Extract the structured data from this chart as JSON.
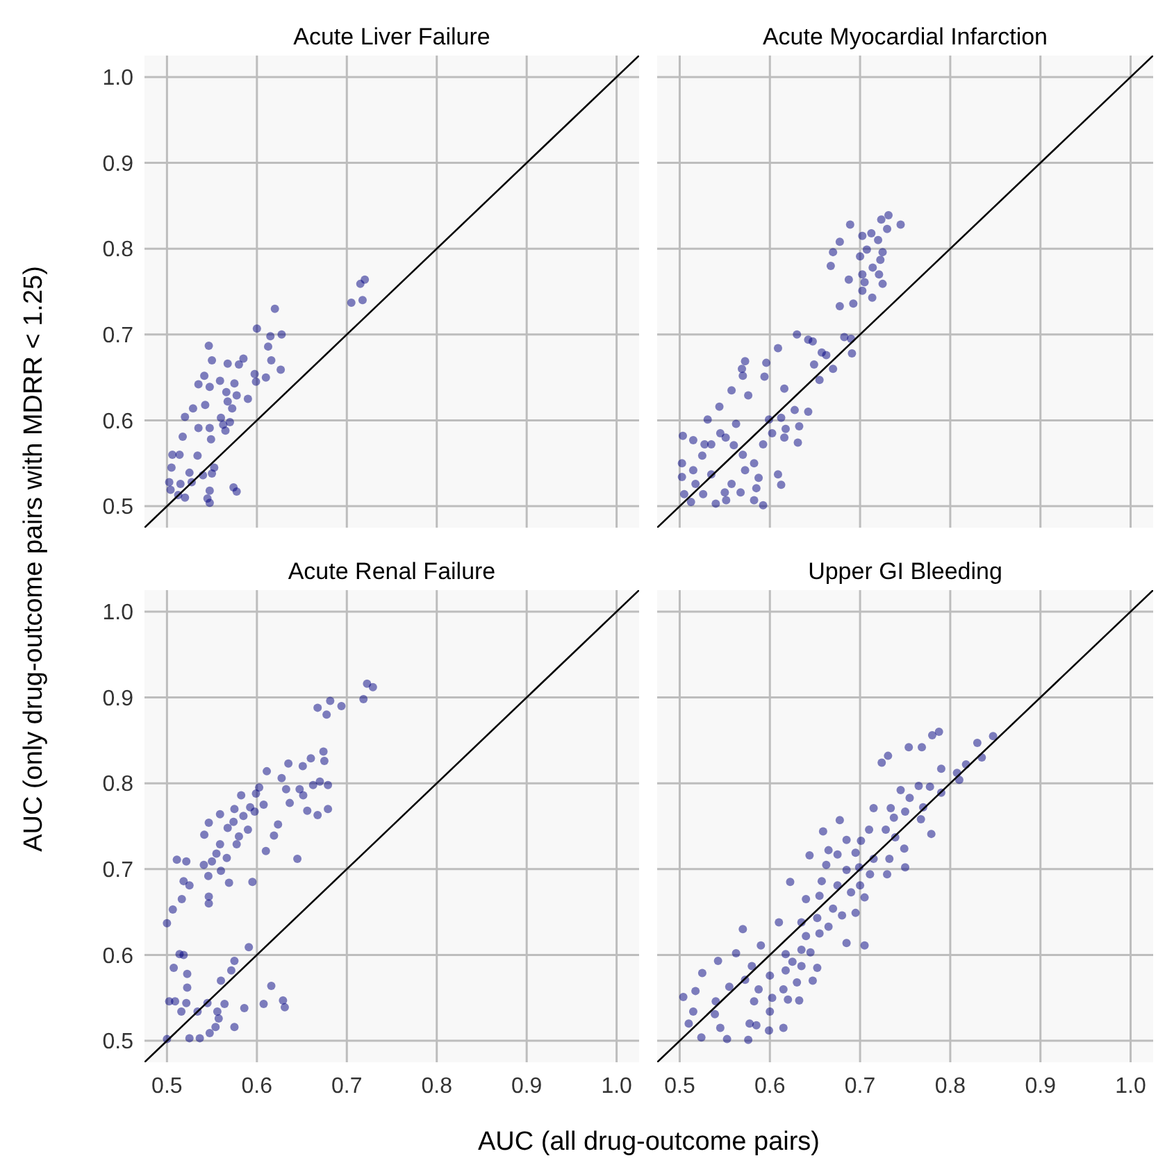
{
  "chart_data": [
    {
      "type": "scatter",
      "title": "Acute Liver Failure",
      "ylabel": "AUC (only drug-outcome pairs with MDRR < 1.25)",
      "xlim": [
        0.475,
        1.025
      ],
      "ylim": [
        0.475,
        1.025
      ],
      "xticks": [
        0.5,
        0.6,
        0.7,
        0.8,
        0.9,
        1
      ],
      "yticks": [
        0.5,
        0.6,
        0.7,
        0.8,
        0.9,
        {
          "value": 1,
          "label": "1.0"
        }
      ],
      "grid": true,
      "tick_labels": "y",
      "series": [
        {
          "marker": "circle",
          "color": "#000080",
          "x": [
            0.72,
            0.715,
            0.705,
            0.7175,
            0.62,
            0.6,
            0.615,
            0.6275,
            0.6125,
            0.5465,
            0.616,
            0.6265,
            0.585,
            0.58,
            0.5675,
            0.55,
            0.5975,
            0.61,
            0.599,
            0.5415,
            0.535,
            0.5475,
            0.559,
            0.575,
            0.566,
            0.5775,
            0.59,
            0.5675,
            0.5425,
            0.529,
            0.5725,
            0.52,
            0.56,
            0.57,
            0.5625,
            0.535,
            0.5475,
            0.5175,
            0.549,
            0.565,
            0.506,
            0.514,
            0.534,
            0.505,
            0.5525,
            0.525,
            0.54,
            0.55,
            0.5025,
            0.5275,
            0.515,
            0.504,
            0.5475,
            0.574,
            0.5775,
            0.52,
            0.545,
            0.5475,
            0.5125
          ],
          "values": [
            0.764,
            0.759,
            0.737,
            0.74,
            0.73,
            0.707,
            0.698,
            0.7,
            0.686,
            0.687,
            0.67,
            0.659,
            0.672,
            0.665,
            0.666,
            0.67,
            0.654,
            0.65,
            0.645,
            0.652,
            0.642,
            0.639,
            0.646,
            0.643,
            0.633,
            0.629,
            0.625,
            0.622,
            0.618,
            0.614,
            0.614,
            0.604,
            0.603,
            0.598,
            0.595,
            0.591,
            0.591,
            0.581,
            0.578,
            0.588,
            0.56,
            0.56,
            0.559,
            0.545,
            0.545,
            0.539,
            0.536,
            0.538,
            0.528,
            0.528,
            0.526,
            0.519,
            0.518,
            0.522,
            0.517,
            0.51,
            0.509,
            0.504,
            0.513
          ]
        },
        {
          "type": "line",
          "color": "#000000",
          "x": [
            0.475,
            1.025
          ],
          "values": [
            0.475,
            1.025
          ]
        }
      ]
    },
    {
      "type": "scatter",
      "title": "Acute Myocardial Infarction",
      "xlim": [
        0.475,
        1.025
      ],
      "ylim": [
        0.475,
        1.025
      ],
      "xticks": [
        0.5,
        0.6,
        0.7,
        0.8,
        0.9,
        1
      ],
      "yticks": [
        0.5,
        0.6,
        0.7,
        0.8,
        0.9,
        1
      ],
      "grid": true,
      "tick_labels": false,
      "series": [
        {
          "marker": "circle",
          "color": "#000080",
          "x": [
            0.689,
            0.7315,
            0.7235,
            0.745,
            0.7125,
            0.73,
            0.7025,
            0.72,
            0.6775,
            0.7075,
            0.725,
            0.67,
            0.7,
            0.7225,
            0.6675,
            0.714,
            0.7025,
            0.6875,
            0.721,
            0.705,
            0.725,
            0.7025,
            0.7135,
            0.6775,
            0.6925,
            0.63,
            0.6425,
            0.6825,
            0.69,
            0.6475,
            0.609,
            0.6575,
            0.6625,
            0.691,
            0.5725,
            0.596,
            0.649,
            0.67,
            0.569,
            0.57,
            0.594,
            0.655,
            0.5575,
            0.616,
            0.576,
            0.544,
            0.6275,
            0.6425,
            0.531,
            0.599,
            0.6125,
            0.5625,
            0.6175,
            0.6325,
            0.5035,
            0.515,
            0.545,
            0.551,
            0.6025,
            0.616,
            0.535,
            0.5275,
            0.5925,
            0.631,
            0.56,
            0.57,
            0.525,
            0.5025,
            0.5825,
            0.515,
            0.5725,
            0.5025,
            0.535,
            0.609,
            0.5875,
            0.5175,
            0.5575,
            0.6125,
            0.505,
            0.526,
            0.55,
            0.5675,
            0.585,
            0.5125,
            0.54,
            0.5825,
            0.5925,
            0.5515
          ],
          "values": [
            0.828,
            0.839,
            0.834,
            0.828,
            0.818,
            0.823,
            0.815,
            0.81,
            0.808,
            0.799,
            0.796,
            0.796,
            0.791,
            0.787,
            0.78,
            0.778,
            0.77,
            0.764,
            0.77,
            0.761,
            0.759,
            0.751,
            0.743,
            0.733,
            0.736,
            0.7,
            0.694,
            0.697,
            0.695,
            0.692,
            0.684,
            0.679,
            0.676,
            0.678,
            0.669,
            0.667,
            0.665,
            0.66,
            0.66,
            0.652,
            0.651,
            0.647,
            0.635,
            0.637,
            0.629,
            0.616,
            0.612,
            0.61,
            0.601,
            0.601,
            0.603,
            0.596,
            0.59,
            0.593,
            0.582,
            0.577,
            0.585,
            0.58,
            0.585,
            0.58,
            0.572,
            0.572,
            0.572,
            0.574,
            0.571,
            0.56,
            0.559,
            0.55,
            0.55,
            0.542,
            0.542,
            0.534,
            0.537,
            0.537,
            0.533,
            0.526,
            0.526,
            0.525,
            0.514,
            0.514,
            0.516,
            0.516,
            0.521,
            0.505,
            0.503,
            0.507,
            0.501,
            0.507
          ]
        },
        {
          "type": "line",
          "color": "#000000",
          "x": [
            0.475,
            1.025
          ],
          "values": [
            0.475,
            1.025
          ]
        }
      ]
    },
    {
      "type": "scatter",
      "title": "Acute Renal Failure",
      "xlabel": "AUC (all drug-outcome pairs)",
      "xlim": [
        0.475,
        1.025
      ],
      "ylim": [
        0.475,
        1.025
      ],
      "xticks": [
        0.5,
        0.6,
        0.7,
        0.8,
        0.9,
        {
          "value": 1,
          "label": "1.0"
        }
      ],
      "yticks": [
        0.5,
        0.6,
        0.7,
        0.8,
        0.9,
        {
          "value": 1,
          "label": "1.0"
        }
      ],
      "grid": true,
      "series": [
        {
          "marker": "circle",
          "color": "#000080",
          "x": [
            0.7225,
            0.729,
            0.7185,
            0.694,
            0.6815,
            0.6675,
            0.6775,
            0.674,
            0.66,
            0.675,
            0.635,
            0.651,
            0.611,
            0.6275,
            0.67,
            0.6625,
            0.679,
            0.6025,
            0.6325,
            0.6475,
            0.599,
            0.5825,
            0.6515,
            0.6365,
            0.6075,
            0.5925,
            0.575,
            0.656,
            0.679,
            0.6675,
            0.559,
            0.585,
            0.5975,
            0.574,
            0.5465,
            0.6235,
            0.5675,
            0.59,
            0.5415,
            0.619,
            0.58,
            0.559,
            0.5775,
            0.61,
            0.555,
            0.5665,
            0.511,
            0.5215,
            0.55,
            0.645,
            0.541,
            0.56,
            0.546,
            0.5185,
            0.569,
            0.595,
            0.525,
            0.5165,
            0.5465,
            0.5465,
            0.5065,
            0.5,
            0.514,
            0.5185,
            0.591,
            0.575,
            0.5075,
            0.5715,
            0.5225,
            0.56,
            0.5225,
            0.616,
            0.5025,
            0.509,
            0.5215,
            0.545,
            0.564,
            0.6075,
            0.629,
            0.631,
            0.586,
            0.516,
            0.534,
            0.556,
            0.5575,
            0.575,
            0.554,
            0.5475,
            0.525,
            0.5365,
            0.5
          ],
          "values": [
            0.916,
            0.912,
            0.898,
            0.89,
            0.896,
            0.888,
            0.88,
            0.837,
            0.829,
            0.826,
            0.823,
            0.82,
            0.814,
            0.806,
            0.802,
            0.798,
            0.798,
            0.795,
            0.793,
            0.793,
            0.788,
            0.786,
            0.786,
            0.777,
            0.775,
            0.772,
            0.77,
            0.768,
            0.77,
            0.763,
            0.764,
            0.762,
            0.767,
            0.755,
            0.754,
            0.752,
            0.748,
            0.746,
            0.74,
            0.739,
            0.738,
            0.729,
            0.729,
            0.721,
            0.718,
            0.713,
            0.711,
            0.709,
            0.709,
            0.712,
            0.705,
            0.698,
            0.692,
            0.686,
            0.684,
            0.685,
            0.681,
            0.665,
            0.668,
            0.66,
            0.653,
            0.637,
            0.601,
            0.6,
            0.609,
            0.593,
            0.585,
            0.582,
            0.578,
            0.57,
            0.562,
            0.564,
            0.546,
            0.546,
            0.544,
            0.544,
            0.543,
            0.543,
            0.547,
            0.539,
            0.538,
            0.534,
            0.534,
            0.534,
            0.526,
            0.516,
            0.516,
            0.509,
            0.503,
            0.503,
            0.502
          ]
        },
        {
          "type": "line",
          "color": "#000000",
          "x": [
            0.475,
            1.025
          ],
          "values": [
            0.475,
            1.025
          ]
        }
      ]
    },
    {
      "type": "scatter",
      "title": "Upper GI Bleeding",
      "xlim": [
        0.475,
        1.025
      ],
      "ylim": [
        0.475,
        1.025
      ],
      "xticks": [
        0.5,
        0.6,
        0.7,
        0.8,
        0.9,
        {
          "value": 1,
          "label": "1.0"
        }
      ],
      "yticks": [
        0.5,
        0.6,
        0.7,
        0.8,
        0.9,
        1
      ],
      "grid": true,
      "tick_labels": "x",
      "series": [
        {
          "marker": "circle",
          "color": "#000080",
          "x": [
            0.7875,
            0.78,
            0.8475,
            0.83,
            0.754,
            0.7685,
            0.731,
            0.724,
            0.835,
            0.8175,
            0.79,
            0.8075,
            0.81,
            0.765,
            0.7775,
            0.745,
            0.79,
            0.755,
            0.715,
            0.734,
            0.75,
            0.77,
            0.7375,
            0.6775,
            0.7675,
            0.779,
            0.71,
            0.7285,
            0.659,
            0.685,
            0.701,
            0.739,
            0.749,
            0.665,
            0.644,
            0.675,
            0.695,
            0.715,
            0.7325,
            0.75,
            0.6625,
            0.685,
            0.699,
            0.711,
            0.73,
            0.6225,
            0.6575,
            0.675,
            0.7,
            0.69,
            0.64,
            0.655,
            0.705,
            0.67,
            0.695,
            0.61,
            0.635,
            0.6525,
            0.68,
            0.57,
            0.665,
            0.655,
            0.64,
            0.705,
            0.685,
            0.635,
            0.6175,
            0.645,
            0.5625,
            0.59,
            0.58,
            0.625,
            0.635,
            0.6175,
            0.6525,
            0.5425,
            0.525,
            0.6,
            0.5725,
            0.63,
            0.6475,
            0.555,
            0.5175,
            0.5875,
            0.615,
            0.504,
            0.54,
            0.5825,
            0.6025,
            0.62,
            0.6325,
            0.515,
            0.539,
            0.6,
            0.5775,
            0.51,
            0.615,
            0.545,
            0.585,
            0.524,
            0.5525,
            0.576,
            0.599
          ],
          "values": [
            0.86,
            0.856,
            0.855,
            0.847,
            0.842,
            0.842,
            0.832,
            0.824,
            0.83,
            0.822,
            0.817,
            0.812,
            0.804,
            0.797,
            0.796,
            0.792,
            0.789,
            0.783,
            0.771,
            0.771,
            0.767,
            0.772,
            0.76,
            0.757,
            0.758,
            0.741,
            0.746,
            0.746,
            0.744,
            0.734,
            0.733,
            0.737,
            0.724,
            0.722,
            0.716,
            0.717,
            0.719,
            0.712,
            0.712,
            0.702,
            0.705,
            0.699,
            0.702,
            0.694,
            0.694,
            0.685,
            0.686,
            0.681,
            0.681,
            0.673,
            0.665,
            0.669,
            0.667,
            0.654,
            0.649,
            0.638,
            0.638,
            0.643,
            0.646,
            0.63,
            0.633,
            0.625,
            0.622,
            0.611,
            0.614,
            0.606,
            0.601,
            0.603,
            0.602,
            0.611,
            0.587,
            0.592,
            0.587,
            0.582,
            0.585,
            0.593,
            0.579,
            0.576,
            0.571,
            0.568,
            0.57,
            0.563,
            0.558,
            0.56,
            0.56,
            0.551,
            0.546,
            0.546,
            0.55,
            0.548,
            0.547,
            0.534,
            0.531,
            0.534,
            0.52,
            0.52,
            0.515,
            0.515,
            0.518,
            0.504,
            0.502,
            0.501,
            0.512
          ]
        },
        {
          "type": "line",
          "color": "#000000",
          "x": [
            0.475,
            1.025
          ],
          "values": [
            0.475,
            1.025
          ]
        }
      ]
    }
  ]
}
